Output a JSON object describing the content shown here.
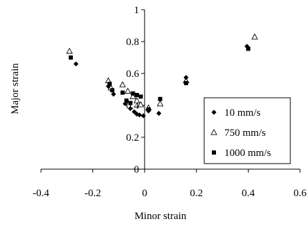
{
  "chart_data": {
    "type": "scatter",
    "xlabel": "Minor strain",
    "ylabel": "Major strain",
    "xlim": [
      -0.4,
      0.6
    ],
    "ylim": [
      0,
      1
    ],
    "xticks": [
      -0.4,
      -0.2,
      0,
      0.2,
      0.4,
      0.6
    ],
    "yticks": [
      0,
      0.2,
      0.4,
      0.6,
      0.8,
      1
    ],
    "xtick_labels": [
      "-0.4",
      "-0.2",
      "0",
      "0.2",
      "0.4",
      "0.6"
    ],
    "ytick_labels": [
      "0",
      "0.2",
      "0.4",
      "0.6",
      "0.8",
      "1"
    ],
    "grid": false,
    "legend_position": "bottom-right",
    "series": [
      {
        "name": "10 mm/s",
        "marker": "diamond",
        "color": "#000000",
        "points": [
          {
            "x": -0.265,
            "y": 0.66
          },
          {
            "x": -0.14,
            "y": 0.52
          },
          {
            "x": -0.12,
            "y": 0.47
          },
          {
            "x": -0.075,
            "y": 0.41
          },
          {
            "x": -0.055,
            "y": 0.38
          },
          {
            "x": -0.04,
            "y": 0.36
          },
          {
            "x": -0.03,
            "y": 0.345
          },
          {
            "x": -0.02,
            "y": 0.34
          },
          {
            "x": -0.005,
            "y": 0.335
          },
          {
            "x": 0.015,
            "y": 0.365
          },
          {
            "x": 0.055,
            "y": 0.35
          },
          {
            "x": 0.16,
            "y": 0.575
          },
          {
            "x": 0.395,
            "y": 0.77
          }
        ]
      },
      {
        "name": "750 mm/s",
        "marker": "triangle-open",
        "color": "#000000",
        "points": [
          {
            "x": -0.29,
            "y": 0.74
          },
          {
            "x": -0.14,
            "y": 0.555
          },
          {
            "x": -0.13,
            "y": 0.51
          },
          {
            "x": -0.085,
            "y": 0.53
          },
          {
            "x": -0.065,
            "y": 0.49
          },
          {
            "x": -0.045,
            "y": 0.455
          },
          {
            "x": -0.03,
            "y": 0.43
          },
          {
            "x": -0.015,
            "y": 0.405
          },
          {
            "x": 0.015,
            "y": 0.385
          },
          {
            "x": 0.06,
            "y": 0.41
          },
          {
            "x": 0.16,
            "y": 0.555
          },
          {
            "x": 0.425,
            "y": 0.83
          }
        ]
      },
      {
        "name": "1000 mm/s",
        "marker": "square",
        "color": "#000000",
        "points": [
          {
            "x": -0.285,
            "y": 0.7
          },
          {
            "x": -0.135,
            "y": 0.535
          },
          {
            "x": -0.125,
            "y": 0.495
          },
          {
            "x": -0.085,
            "y": 0.48
          },
          {
            "x": -0.07,
            "y": 0.43
          },
          {
            "x": -0.055,
            "y": 0.415
          },
          {
            "x": -0.045,
            "y": 0.475
          },
          {
            "x": -0.03,
            "y": 0.465
          },
          {
            "x": -0.015,
            "y": 0.455
          },
          {
            "x": 0.015,
            "y": 0.375
          },
          {
            "x": 0.06,
            "y": 0.44
          },
          {
            "x": 0.16,
            "y": 0.54
          },
          {
            "x": 0.4,
            "y": 0.755
          }
        ]
      }
    ]
  }
}
